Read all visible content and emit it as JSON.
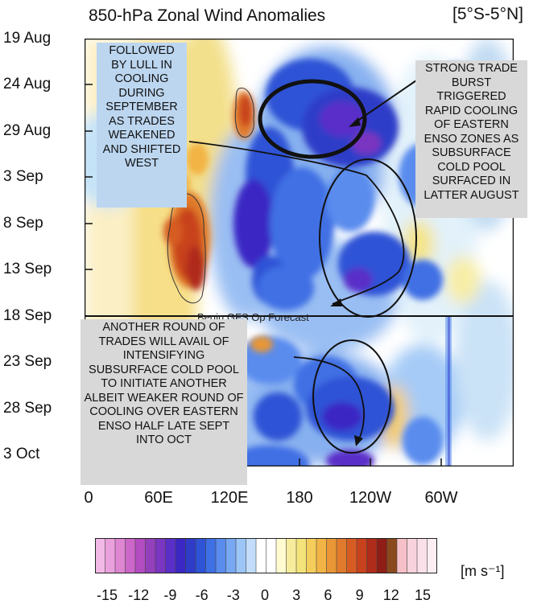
{
  "title": "850-hPa Zonal Wind Anomalies",
  "region": "[5°S-5°N]",
  "forecast_label": "Begin GFS Op Forecast",
  "units": "[m s⁻¹]",
  "annotations": [
    "FOLLOWED BY LULL IN COOLING DURING SEPTEMBER AS TRADES WEAKENED AND SHIFTED WEST",
    "STRONG TRADE BURST TRIGGERED RAPID COOLING OF  EASTERN ENSO ZONES AS SUBSURFACE COLD POOL SURFACED IN LATTER AUGUST",
    "ANOTHER ROUND OF TRADES WILL AVAIL OF INTENSIFYING SUBSURFACE COLD POOL TO INITIATE ANOTHER ALBEIT WEAKER ROUND OF COOLING OVER EASTERN ENSO HALF LATE SEPT INTO OCT"
  ],
  "colors": {
    "strong_easterly": "#6a30c8",
    "easterly": "#2f53d6",
    "weak_easterly": "#8fb8f2",
    "weak_westerly": "#f4e27a",
    "westerly": "#e8a030",
    "strong_westerly": "#c8321e"
  },
  "chart_data": {
    "type": "heatmap",
    "title": "850-hPa Zonal Wind Anomalies",
    "subtitle": "[5°S-5°N]",
    "x_ticks": [
      "0",
      "60E",
      "120E",
      "180",
      "120W",
      "60W"
    ],
    "y_ticks": [
      "19 Aug",
      "24 Aug",
      "29 Aug",
      "3 Sep",
      "8 Sep",
      "13 Sep",
      "18 Sep",
      "23 Sep",
      "28 Sep",
      "3 Oct"
    ],
    "colorbar_ticks": [
      "-15",
      "-12",
      "-9",
      "-6",
      "-3",
      "0",
      "3",
      "6",
      "9",
      "12",
      "15"
    ],
    "colorbar_units": "[m s⁻¹]",
    "colorbar_range": [
      -15,
      15
    ],
    "forecast_start": "18 Sep",
    "colorbar_colors": [
      "#f2b8e6",
      "#e9a0dc",
      "#de86d2",
      "#cc66c8",
      "#b24cc0",
      "#9440bc",
      "#7a36c0",
      "#5a2fc8",
      "#3b28c4",
      "#2f3cc8",
      "#2f53d6",
      "#3f6fe4",
      "#5a8cee",
      "#78a8f2",
      "#9cc6f6",
      "#c2dcfa",
      "#ffffff",
      "#ffffff",
      "#fffad0",
      "#f7ec9c",
      "#f4e27a",
      "#f4cd5a",
      "#f2b444",
      "#e89636",
      "#e07a2c",
      "#d65c24",
      "#c8421e",
      "#b02c1a",
      "#8e1e16",
      "#8a4a1e",
      "#f6c0c8",
      "#f8d2dc",
      "#fae0e8",
      "#fceef2"
    ]
  }
}
